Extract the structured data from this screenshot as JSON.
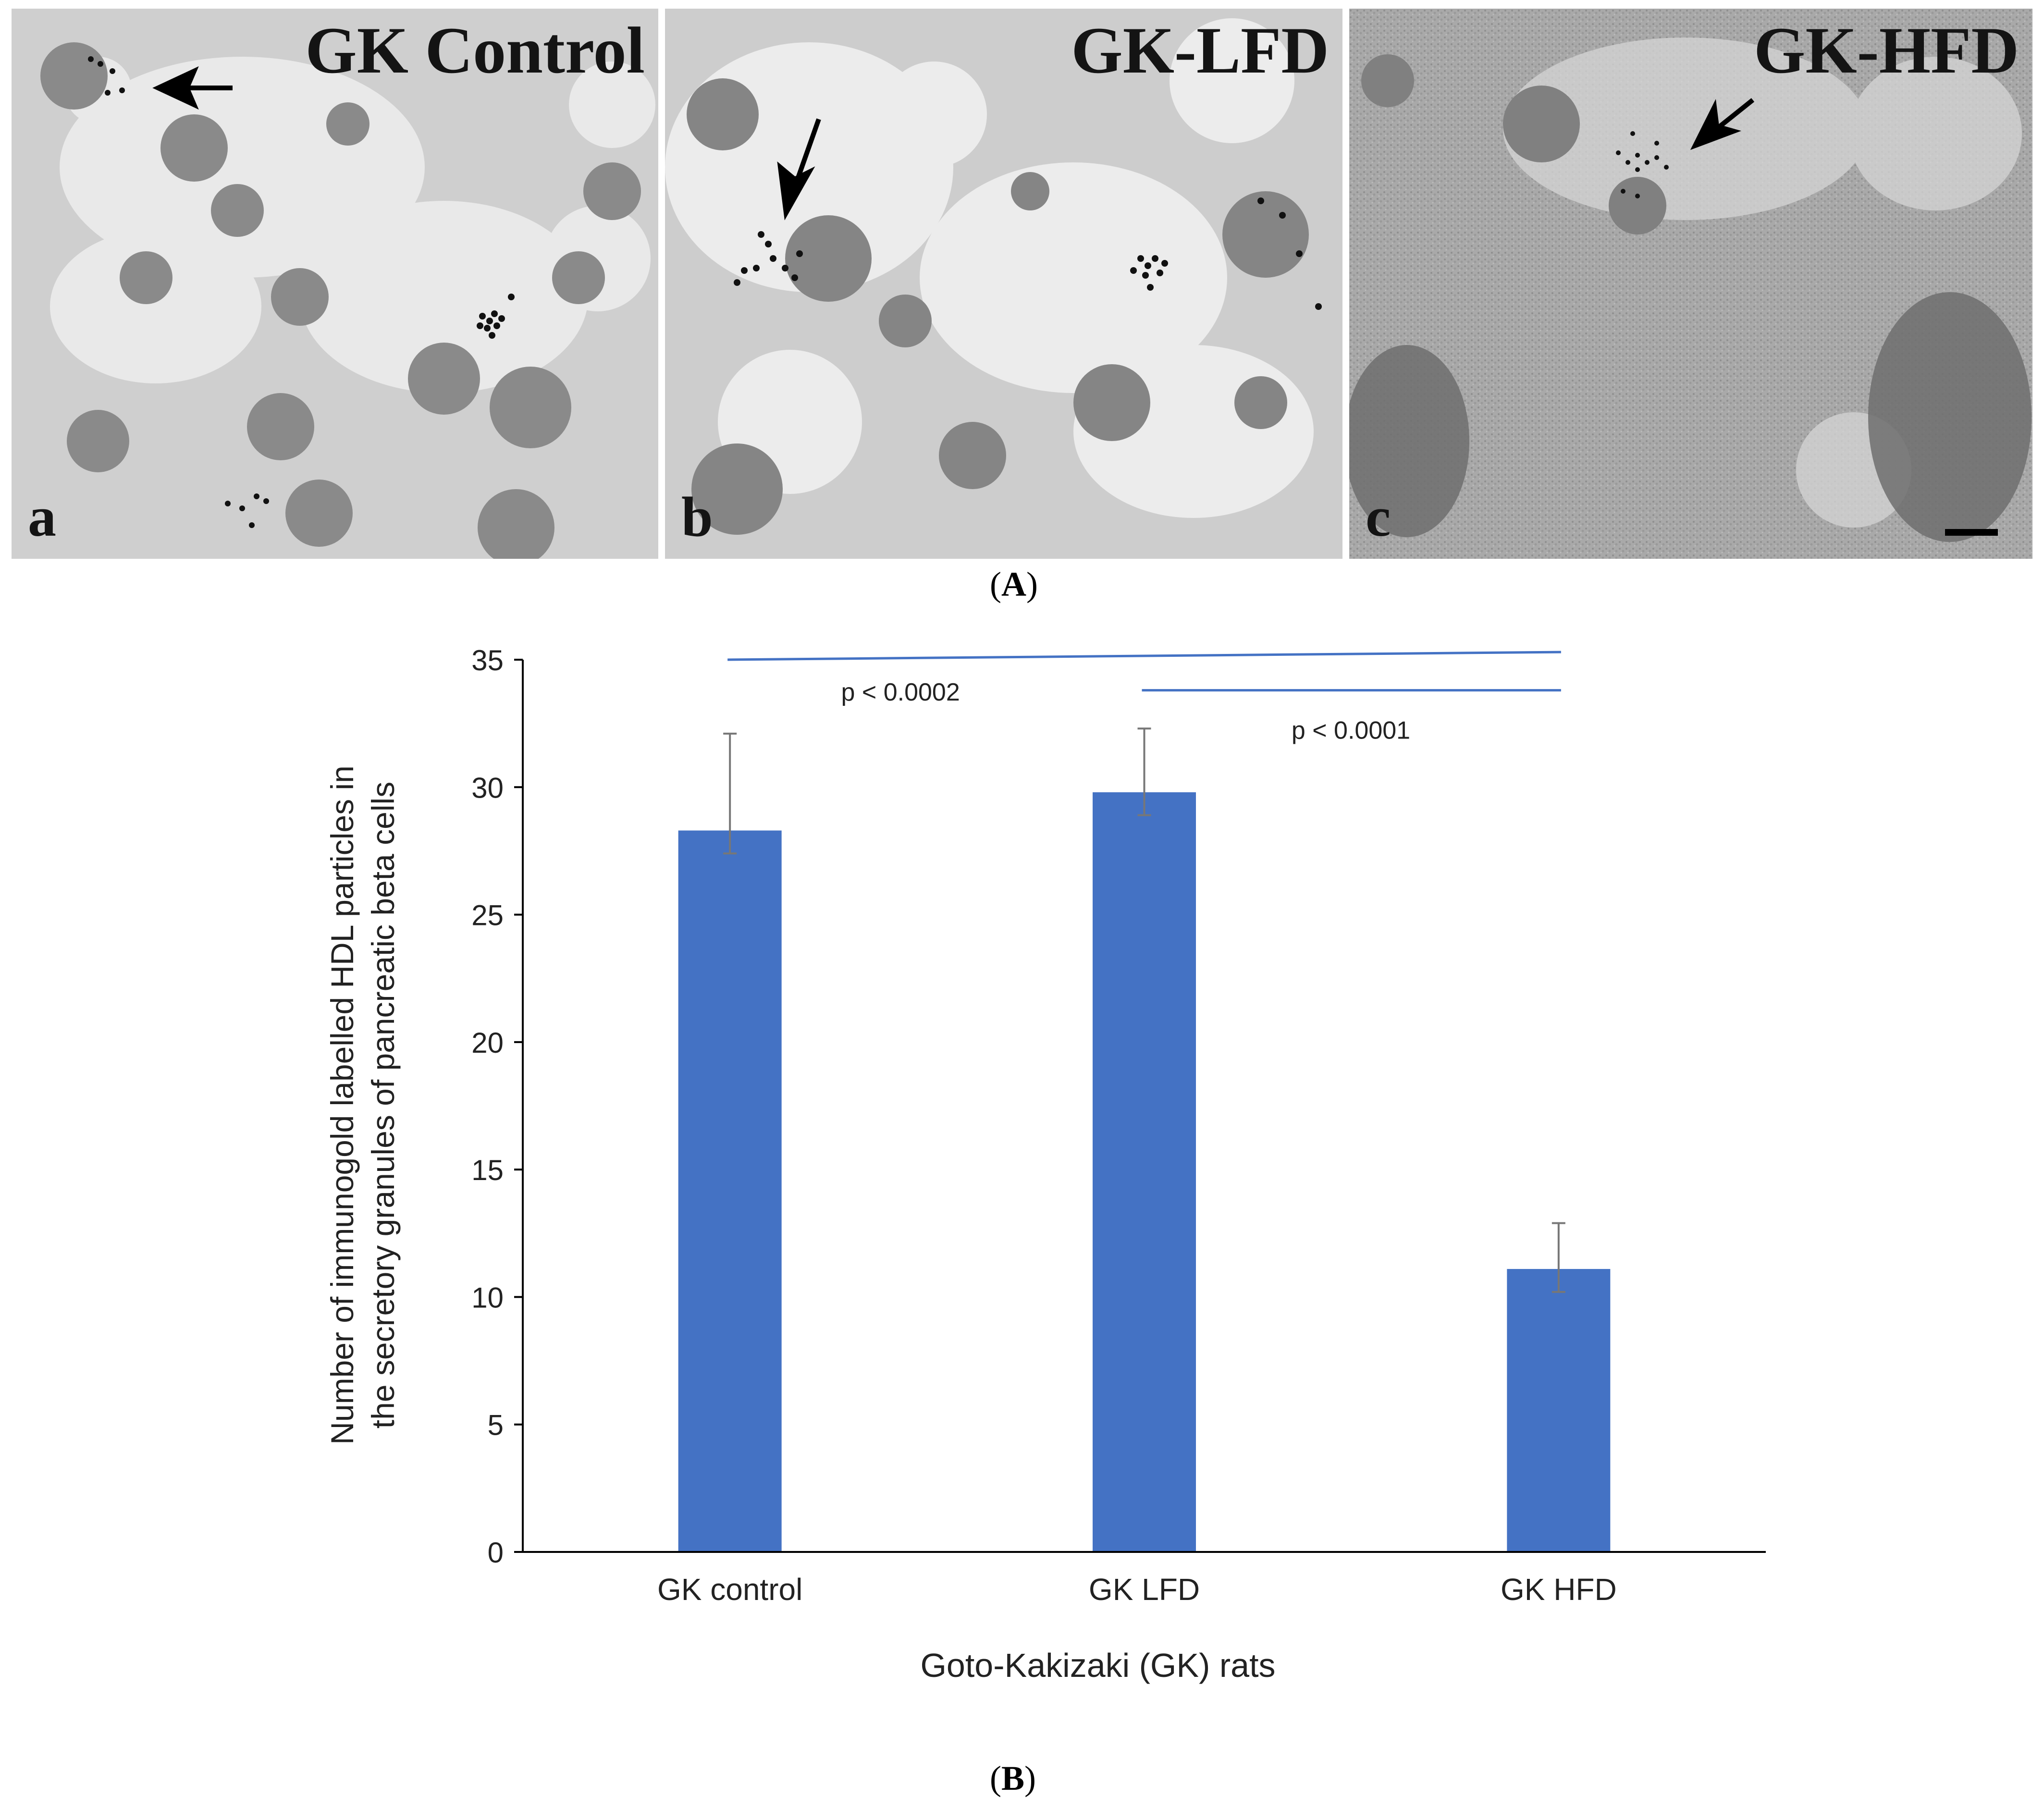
{
  "figure": {
    "part_a_label": "A",
    "part_b_label": "B"
  },
  "panels": [
    {
      "letter": "a",
      "title": "GK Control"
    },
    {
      "letter": "b",
      "title": "GK-LFD"
    },
    {
      "letter": "c",
      "title": "GK-HFD"
    }
  ],
  "chart_data": {
    "type": "bar",
    "categories": [
      "GK control",
      "GK LFD",
      "GK HFD"
    ],
    "values": [
      28.3,
      29.8,
      11.1
    ],
    "error_upper": [
      32.1,
      32.3,
      12.9
    ],
    "error_lower": [
      27.4,
      28.9,
      10.2
    ],
    "bar_color": "#4472C4",
    "significance_color": "#4472C4",
    "ylim": [
      0,
      35
    ],
    "yticks": [
      "0",
      "5",
      "10",
      "15",
      "20",
      "25",
      "30",
      "35"
    ],
    "ylabel_line1": "Number of immunogold labelled HDL particles in",
    "ylabel_line2": "the secretory granules of pancreatic beta cells",
    "xlabel": "Goto-Kakizaki (GK) rats",
    "significance": [
      {
        "from": "GK control",
        "to": "GK HFD",
        "label": "p < 0.0002"
      },
      {
        "from": "GK LFD",
        "to": "GK HFD",
        "label": "p < 0.0001"
      }
    ]
  }
}
